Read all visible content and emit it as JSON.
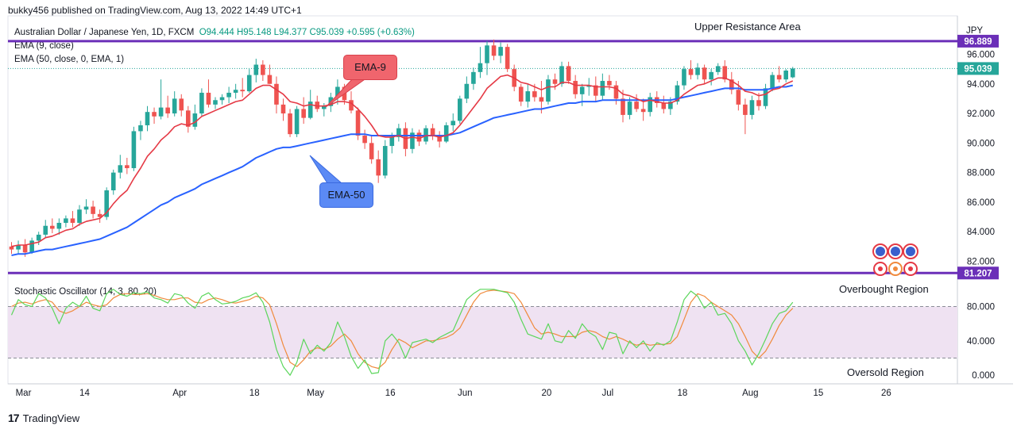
{
  "header": {
    "published": "bukky456 published on TradingView.com, Aug 13, 2022 14:49 UTC+1"
  },
  "legend": {
    "symbol": "Australian Dollar / Japanese Yen, 1D, FXCM",
    "ohlc": "O94.444  H95.148  L94.377  C95.039  +0.595 (+0.63%)",
    "ema9": "EMA (9, close)",
    "ema50": "EMA (50, close, 0, EMA, 1)",
    "stoch": "Stochastic Oscillator (14, 3, 80, 20)"
  },
  "annotations": {
    "upper_resistance": "Upper Resistance Area",
    "ema9_callout": "EMA-9",
    "ema50_callout": "EMA-50",
    "overbought": "Overbought Region",
    "oversold": "Oversold Region"
  },
  "footer": {
    "brand": "TradingView"
  },
  "colors": {
    "up": "#26a69a",
    "down": "#ef5350",
    "ema9": "#e53945",
    "ema50": "#2962ff",
    "level": "#6b2fb8",
    "stoch_k": "#5bd65b",
    "stoch_d": "#f08a3c",
    "band": "#efe2f2",
    "ema9_callout_bg": "#f0656d",
    "ema50_callout_bg": "#5b8af5"
  },
  "chart_data": [
    {
      "type": "candlestick",
      "currency": "JPY",
      "y_ticks": [
        82,
        84,
        86,
        88,
        90,
        92,
        94,
        96
      ],
      "y_tick_labels": [
        "82.000",
        "84.000",
        "86.000",
        "88.000",
        "90.000",
        "92.000",
        "94.000",
        "96.000"
      ],
      "ylim": [
        80.9,
        98.6
      ],
      "x_tick_labels": [
        {
          "idx": 0,
          "label": "Mar"
        },
        {
          "idx": 9,
          "label": "14"
        },
        {
          "idx": 23,
          "label": "Apr"
        },
        {
          "idx": 34,
          "label": "18"
        },
        {
          "idx": 43,
          "label": "May"
        },
        {
          "idx": 54,
          "label": "16"
        },
        {
          "idx": 65,
          "label": "Jun"
        },
        {
          "idx": 77,
          "label": "20"
        },
        {
          "idx": 86,
          "label": "Jul"
        },
        {
          "idx": 97,
          "label": "18"
        },
        {
          "idx": 107,
          "label": "Aug"
        },
        {
          "idx": 117,
          "label": "15"
        },
        {
          "idx": 127,
          "label": "26"
        }
      ],
      "levels": [
        {
          "name": "upper",
          "value": 96.889,
          "label": "96.889"
        },
        {
          "name": "lower",
          "value": 81.207,
          "label": "81.207"
        }
      ],
      "last_price": {
        "value": 95.039,
        "label": "95.039"
      },
      "candles": [
        [
          83.0,
          83.3,
          82.5,
          82.8
        ],
        [
          82.8,
          83.4,
          82.5,
          83.1
        ],
        [
          83.1,
          83.5,
          82.3,
          82.6
        ],
        [
          82.6,
          83.6,
          82.5,
          83.4
        ],
        [
          83.4,
          84.0,
          83.1,
          83.8
        ],
        [
          83.8,
          84.8,
          83.6,
          84.4
        ],
        [
          84.4,
          84.9,
          83.9,
          84.2
        ],
        [
          84.2,
          84.9,
          83.8,
          84.6
        ],
        [
          84.6,
          85.1,
          84.3,
          84.9
        ],
        [
          84.9,
          85.4,
          84.3,
          84.6
        ],
        [
          84.6,
          85.8,
          84.4,
          85.5
        ],
        [
          85.5,
          86.2,
          85.2,
          85.7
        ],
        [
          85.7,
          86.1,
          84.9,
          85.2
        ],
        [
          85.2,
          85.5,
          84.6,
          85.0
        ],
        [
          85.0,
          87.0,
          84.8,
          86.8
        ],
        [
          86.8,
          88.2,
          86.5,
          88.0
        ],
        [
          88.0,
          89.2,
          87.6,
          88.5
        ],
        [
          88.5,
          89.0,
          87.9,
          88.3
        ],
        [
          88.3,
          91.1,
          88.1,
          90.8
        ],
        [
          90.8,
          91.5,
          90.2,
          91.2
        ],
        [
          91.2,
          92.5,
          90.8,
          92.1
        ],
        [
          92.1,
          92.4,
          91.3,
          91.8
        ],
        [
          91.8,
          94.3,
          91.6,
          92.4
        ],
        [
          92.4,
          93.2,
          91.7,
          92.0
        ],
        [
          92.0,
          93.5,
          91.8,
          93.0
        ],
        [
          93.0,
          93.3,
          91.8,
          92.2
        ],
        [
          92.2,
          92.5,
          90.7,
          91.1
        ],
        [
          91.1,
          92.6,
          90.9,
          92.0
        ],
        [
          92.0,
          93.7,
          91.8,
          93.4
        ],
        [
          93.4,
          94.3,
          92.4,
          92.6
        ],
        [
          92.6,
          93.1,
          92.3,
          92.9
        ],
        [
          92.9,
          93.3,
          92.6,
          93.1
        ],
        [
          93.1,
          93.8,
          92.7,
          93.4
        ],
        [
          93.4,
          94.0,
          93.0,
          93.6
        ],
        [
          93.6,
          94.4,
          93.1,
          93.5
        ],
        [
          93.5,
          95.0,
          93.4,
          94.6
        ],
        [
          94.6,
          95.7,
          94.1,
          95.3
        ],
        [
          95.3,
          95.6,
          94.2,
          94.6
        ],
        [
          94.6,
          95.3,
          94.0,
          94.0
        ],
        [
          94.0,
          94.5,
          92.0,
          92.6
        ],
        [
          92.6,
          93.0,
          91.5,
          92.0
        ],
        [
          92.0,
          92.3,
          90.4,
          90.6
        ],
        [
          90.6,
          92.5,
          90.4,
          92.3
        ],
        [
          92.3,
          93.1,
          91.3,
          91.7
        ],
        [
          91.7,
          93.6,
          91.6,
          92.8
        ],
        [
          92.8,
          93.2,
          92.1,
          92.3
        ],
        [
          92.3,
          92.7,
          91.8,
          92.5
        ],
        [
          92.5,
          93.4,
          92.1,
          93.1
        ],
        [
          93.1,
          94.3,
          92.6,
          93.8
        ],
        [
          93.8,
          94.0,
          92.6,
          92.9
        ],
        [
          92.9,
          93.5,
          92.0,
          92.2
        ],
        [
          92.2,
          92.4,
          90.2,
          90.5
        ],
        [
          90.5,
          90.9,
          89.6,
          90.0
        ],
        [
          90.0,
          90.5,
          88.6,
          88.9
        ],
        [
          88.9,
          89.5,
          87.3,
          87.8
        ],
        [
          87.8,
          90.2,
          87.6,
          89.8
        ],
        [
          89.8,
          90.7,
          89.3,
          90.4
        ],
        [
          90.4,
          91.3,
          90.1,
          91.0
        ],
        [
          91.0,
          91.4,
          89.1,
          89.6
        ],
        [
          89.6,
          91.0,
          89.3,
          90.7
        ],
        [
          90.7,
          90.9,
          89.8,
          90.1
        ],
        [
          90.1,
          91.2,
          89.9,
          91.0
        ],
        [
          91.0,
          91.3,
          90.2,
          90.5
        ],
        [
          90.5,
          90.8,
          89.7,
          90.1
        ],
        [
          90.1,
          91.4,
          90.0,
          91.2
        ],
        [
          91.2,
          92.0,
          90.8,
          91.5
        ],
        [
          91.5,
          93.2,
          91.3,
          93.0
        ],
        [
          93.0,
          94.5,
          92.7,
          94.0
        ],
        [
          94.0,
          95.1,
          93.6,
          94.8
        ],
        [
          94.8,
          96.5,
          94.4,
          95.4
        ],
        [
          95.4,
          96.9,
          94.6,
          96.6
        ],
        [
          96.6,
          97.0,
          95.6,
          95.9
        ],
        [
          95.9,
          96.8,
          95.4,
          96.5
        ],
        [
          96.5,
          96.7,
          94.8,
          95.0
        ],
        [
          95.0,
          95.3,
          93.5,
          93.8
        ],
        [
          93.8,
          94.0,
          92.5,
          92.8
        ],
        [
          92.8,
          94.0,
          92.4,
          93.5
        ],
        [
          93.5,
          94.0,
          92.8,
          93.1
        ],
        [
          93.1,
          94.2,
          92.0,
          92.8
        ],
        [
          92.8,
          94.6,
          92.6,
          94.3
        ],
        [
          94.3,
          94.7,
          93.6,
          94.0
        ],
        [
          94.0,
          95.5,
          93.8,
          95.2
        ],
        [
          95.2,
          95.5,
          94.0,
          94.2
        ],
        [
          94.2,
          94.6,
          93.0,
          93.3
        ],
        [
          93.3,
          94.0,
          92.5,
          93.8
        ],
        [
          93.8,
          94.4,
          93.2,
          93.9
        ],
        [
          93.9,
          94.5,
          92.8,
          93.2
        ],
        [
          93.2,
          94.7,
          92.9,
          94.2
        ],
        [
          94.2,
          94.6,
          93.6,
          93.9
        ],
        [
          93.9,
          94.2,
          92.6,
          93.0
        ],
        [
          93.0,
          93.6,
          91.4,
          91.9
        ],
        [
          91.9,
          93.1,
          91.6,
          92.8
        ],
        [
          92.8,
          93.3,
          92.1,
          92.3
        ],
        [
          92.3,
          93.0,
          91.5,
          92.1
        ],
        [
          92.1,
          93.4,
          91.8,
          93.1
        ],
        [
          93.1,
          93.5,
          92.4,
          92.7
        ],
        [
          92.7,
          93.2,
          92.0,
          92.3
        ],
        [
          92.3,
          93.1,
          91.9,
          92.8
        ],
        [
          92.8,
          94.2,
          92.6,
          93.9
        ],
        [
          93.9,
          95.2,
          93.6,
          95.0
        ],
        [
          95.0,
          95.6,
          94.3,
          94.6
        ],
        [
          94.6,
          95.4,
          94.3,
          95.1
        ],
        [
          95.1,
          95.3,
          94.0,
          94.3
        ],
        [
          94.3,
          95.0,
          93.9,
          94.8
        ],
        [
          94.8,
          95.4,
          94.6,
          95.2
        ],
        [
          95.2,
          95.6,
          94.1,
          94.3
        ],
        [
          94.3,
          94.8,
          93.3,
          93.6
        ],
        [
          93.6,
          94.2,
          92.2,
          92.6
        ],
        [
          92.6,
          93.0,
          90.6,
          91.9
        ],
        [
          91.9,
          93.2,
          91.6,
          92.9
        ],
        [
          92.9,
          93.4,
          92.2,
          92.5
        ],
        [
          92.5,
          94.0,
          92.3,
          93.7
        ],
        [
          93.7,
          94.8,
          93.5,
          94.6
        ],
        [
          94.6,
          95.2,
          94.1,
          94.3
        ],
        [
          94.3,
          95.0,
          94.1,
          94.9
        ],
        [
          94.444,
          95.148,
          94.377,
          95.039
        ]
      ],
      "ema9": [
        83.0,
        83.1,
        83.1,
        83.2,
        83.3,
        83.6,
        83.7,
        83.9,
        84.1,
        84.2,
        84.5,
        84.7,
        84.8,
        84.9,
        85.3,
        85.9,
        86.4,
        86.8,
        87.6,
        88.3,
        89.1,
        89.6,
        90.2,
        90.6,
        91.1,
        91.3,
        91.2,
        91.4,
        91.8,
        92.0,
        92.2,
        92.4,
        92.6,
        92.8,
        92.9,
        93.3,
        93.7,
        93.9,
        93.9,
        93.6,
        93.3,
        92.8,
        92.7,
        92.5,
        92.6,
        92.5,
        92.5,
        92.6,
        92.8,
        92.8,
        92.7,
        92.3,
        91.8,
        91.2,
        90.5,
        90.4,
        90.4,
        90.5,
        90.3,
        90.4,
        90.3,
        90.5,
        90.5,
        90.4,
        90.5,
        90.7,
        91.2,
        91.8,
        92.4,
        93.0,
        93.7,
        94.1,
        94.5,
        94.6,
        94.4,
        94.1,
        94.0,
        93.8,
        93.6,
        93.8,
        93.8,
        94.1,
        94.1,
        93.9,
        93.9,
        93.9,
        93.8,
        93.8,
        93.8,
        93.7,
        93.3,
        93.2,
        93.0,
        92.8,
        92.9,
        92.8,
        92.7,
        92.7,
        92.9,
        93.3,
        93.6,
        93.9,
        94.0,
        94.2,
        94.4,
        94.4,
        94.2,
        93.9,
        93.5,
        93.4,
        93.2,
        93.3,
        93.6,
        93.7,
        94.0,
        94.2
      ],
      "ema50": [
        82.4,
        82.5,
        82.5,
        82.6,
        82.7,
        82.8,
        82.8,
        82.9,
        83.0,
        83.1,
        83.2,
        83.3,
        83.4,
        83.5,
        83.7,
        83.9,
        84.1,
        84.3,
        84.6,
        84.9,
        85.2,
        85.5,
        85.8,
        86.0,
        86.3,
        86.5,
        86.7,
        86.9,
        87.2,
        87.4,
        87.6,
        87.8,
        88.0,
        88.2,
        88.4,
        88.7,
        89.0,
        89.2,
        89.4,
        89.6,
        89.7,
        89.7,
        89.8,
        89.9,
        90.0,
        90.1,
        90.2,
        90.3,
        90.4,
        90.5,
        90.6,
        90.6,
        90.6,
        90.5,
        90.5,
        90.5,
        90.5,
        90.5,
        90.5,
        90.5,
        90.5,
        90.5,
        90.5,
        90.5,
        90.5,
        90.6,
        90.7,
        90.9,
        91.1,
        91.3,
        91.5,
        91.7,
        91.8,
        91.9,
        92.0,
        92.1,
        92.2,
        92.3,
        92.3,
        92.4,
        92.5,
        92.6,
        92.7,
        92.7,
        92.8,
        92.8,
        92.8,
        92.9,
        92.9,
        92.9,
        92.9,
        92.9,
        92.9,
        92.9,
        92.9,
        92.9,
        92.9,
        92.9,
        93.0,
        93.1,
        93.2,
        93.3,
        93.4,
        93.5,
        93.6,
        93.7,
        93.7,
        93.7,
        93.6,
        93.6,
        93.6,
        93.6,
        93.7,
        93.8,
        93.8,
        93.9
      ]
    },
    {
      "type": "line",
      "name": "Stochastic Oscillator (14, 3, 80, 20)",
      "y_ticks": [
        0,
        40,
        80
      ],
      "y_tick_labels": [
        "0.000",
        "40.000",
        "80.000"
      ],
      "ylim": [
        -10,
        110
      ],
      "bands": [
        80,
        20
      ],
      "k": [
        70,
        88,
        82,
        80,
        95,
        90,
        78,
        60,
        78,
        85,
        80,
        92,
        78,
        75,
        95,
        100,
        94,
        92,
        96,
        95,
        97,
        90,
        88,
        84,
        95,
        93,
        84,
        78,
        92,
        96,
        88,
        83,
        84,
        86,
        90,
        92,
        96,
        85,
        62,
        30,
        10,
        0,
        15,
        42,
        25,
        35,
        28,
        38,
        62,
        45,
        22,
        8,
        18,
        2,
        3,
        40,
        48,
        38,
        20,
        38,
        40,
        42,
        38,
        44,
        48,
        52,
        70,
        88,
        95,
        100,
        100,
        100,
        98,
        96,
        85,
        65,
        48,
        45,
        42,
        60,
        40,
        38,
        52,
        43,
        60,
        50,
        45,
        30,
        50,
        48,
        25,
        40,
        32,
        40,
        28,
        38,
        35,
        40,
        62,
        88,
        98,
        92,
        78,
        85,
        70,
        72,
        60,
        40,
        28,
        12,
        25,
        42,
        60,
        72,
        75,
        85
      ],
      "d": [
        80,
        84,
        85,
        83,
        86,
        88,
        85,
        75,
        72,
        75,
        80,
        85,
        82,
        80,
        82,
        90,
        94,
        95,
        94,
        94,
        95,
        93,
        90,
        88,
        88,
        90,
        90,
        85,
        84,
        88,
        90,
        88,
        85,
        84,
        86,
        88,
        92,
        90,
        82,
        60,
        35,
        15,
        10,
        18,
        28,
        32,
        30,
        34,
        42,
        48,
        40,
        25,
        15,
        10,
        8,
        15,
        30,
        42,
        38,
        32,
        36,
        40,
        40,
        42,
        44,
        48,
        55,
        70,
        85,
        95,
        98,
        99,
        98,
        97,
        95,
        85,
        70,
        55,
        48,
        50,
        48,
        45,
        45,
        45,
        50,
        52,
        50,
        45,
        42,
        45,
        42,
        38,
        35,
        37,
        35,
        36,
        36,
        37,
        45,
        65,
        85,
        95,
        92,
        85,
        80,
        75,
        70,
        60,
        45,
        28,
        20,
        28,
        42,
        58,
        70,
        78
      ]
    }
  ]
}
